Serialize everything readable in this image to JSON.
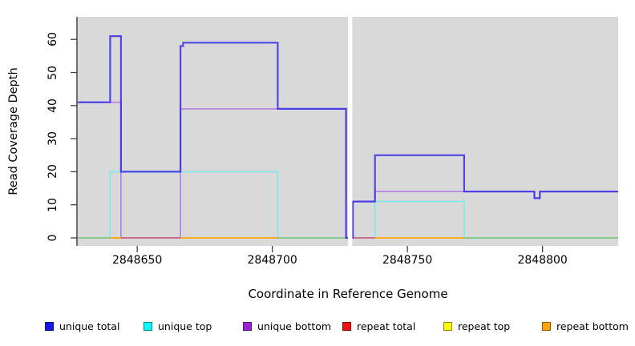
{
  "figure": {
    "background": "#ffffff",
    "plot_background": "#d9d9d9",
    "axis_color": "#404040"
  },
  "y_axis": {
    "title": "Read Coverage Depth",
    "tick_labels": [
      "0",
      "10",
      "20",
      "30",
      "40",
      "50",
      "60"
    ],
    "tick_values": [
      0,
      10,
      20,
      30,
      40,
      50,
      60
    ]
  },
  "x_axis": {
    "title": "Coordinate in Reference Genome",
    "tick_labels": [
      "2848650",
      "2848700",
      "2848750",
      "2848800"
    ],
    "tick_values": [
      2848650,
      2848700,
      2848750,
      2848800
    ]
  },
  "legend": {
    "items": [
      {
        "label": "unique total",
        "color": "#1414ee"
      },
      {
        "label": "unique top",
        "color": "#00ffff"
      },
      {
        "label": "unique bottom",
        "color": "#9a1fd6"
      },
      {
        "label": "repeat total",
        "color": "#ee1111"
      },
      {
        "label": "repeat top",
        "color": "#ffff00"
      },
      {
        "label": "repeat bottom",
        "color": "#ffa500"
      }
    ]
  },
  "chart_data": {
    "type": "line",
    "subtype": "step-coverage",
    "title": "",
    "xlabel": "Coordinate in Reference Genome",
    "ylabel": "Read Coverage Depth",
    "x_range": [
      2848628,
      2848828
    ],
    "y_range": [
      0,
      68
    ],
    "grid": false,
    "legend_position": "bottom",
    "gap": {
      "from": 2848728,
      "to": 2848729.6,
      "note": "white no-data band through full plot height"
    },
    "series": [
      {
        "name": "unique total",
        "line_color": "#372ce6",
        "opacity": 0.85,
        "width": 2.2,
        "draw": true,
        "steps": [
          [
            2848628,
            41
          ],
          [
            2848640,
            61
          ],
          [
            2848644,
            20
          ],
          [
            2848666,
            58
          ],
          [
            2848667,
            59
          ],
          [
            2848702,
            39
          ],
          [
            2848727.3,
            0
          ],
          [
            2848729.8,
            11
          ],
          [
            2848738,
            25
          ],
          [
            2848771,
            14
          ],
          [
            2848797,
            12
          ],
          [
            2848799,
            14
          ],
          [
            2848828,
            14
          ]
        ]
      },
      {
        "name": "unique top",
        "line_color": "#7fe8ea",
        "opacity": 1,
        "width": 1.6,
        "draw": true,
        "steps": [
          [
            2848628,
            0
          ],
          [
            2848640,
            20
          ],
          [
            2848702,
            0
          ],
          [
            2848738,
            11
          ],
          [
            2848771,
            0
          ],
          [
            2848828,
            0
          ]
        ]
      },
      {
        "name": "unique bottom",
        "line_color": "#b07ce0",
        "opacity": 0.95,
        "width": 1.6,
        "draw": true,
        "steps": [
          [
            2848628,
            41
          ],
          [
            2848644,
            0
          ],
          [
            2848666,
            39
          ],
          [
            2848727.3,
            0
          ],
          [
            2848729.8,
            11
          ],
          [
            2848738,
            14
          ],
          [
            2848797,
            12
          ],
          [
            2848799,
            14
          ],
          [
            2848828,
            14
          ]
        ]
      },
      {
        "name": "repeat total",
        "line_color": "#c9607f",
        "opacity": 1,
        "width": 1.6,
        "draw": false,
        "steps": [
          [
            2848628,
            0
          ],
          [
            2848828,
            0
          ]
        ]
      },
      {
        "name": "repeat top",
        "line_color": "#ffff00",
        "opacity": 1,
        "width": 1.6,
        "draw": false,
        "steps": [
          [
            2848628,
            0
          ],
          [
            2848828,
            0
          ]
        ]
      },
      {
        "name": "repeat bottom",
        "line_color": "#ffa500",
        "opacity": 1,
        "width": 1.6,
        "draw": false,
        "steps": [
          [
            2848628,
            0
          ],
          [
            2848828,
            0
          ]
        ]
      }
    ],
    "baseline_segments": [
      {
        "from": 2848628,
        "to": 2848640,
        "color": "#7cc87c"
      },
      {
        "from": 2848640,
        "to": 2848644,
        "color": "#ffa500"
      },
      {
        "from": 2848644,
        "to": 2848666,
        "color": "#c9607f"
      },
      {
        "from": 2848666,
        "to": 2848702,
        "color": "#ffa500"
      },
      {
        "from": 2848702,
        "to": 2848727.3,
        "color": "#7cc87c"
      },
      {
        "from": 2848729.8,
        "to": 2848738,
        "color": "#c9607f"
      },
      {
        "from": 2848738,
        "to": 2848771,
        "color": "#ffa500"
      },
      {
        "from": 2848771,
        "to": 2848828,
        "color": "#7cc87c"
      }
    ]
  }
}
